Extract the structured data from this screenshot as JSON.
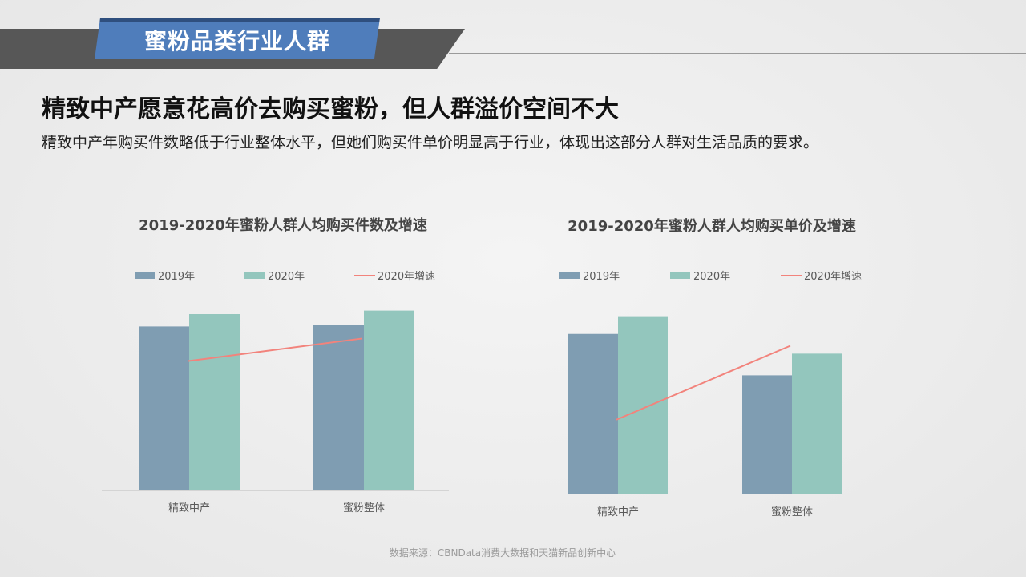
{
  "header": {
    "section_title": "蜜粉品类行业人群"
  },
  "headline": "精致中产愿意花高价去购买蜜粉，但人群溢价空间不大",
  "subline": "精致中产年购买件数略低于行业整体水平，但她们购买件单价明显高于行业，体现出这部分人群对生活品质的要求。",
  "footer": {
    "source": "数据来源：CBNData消费大数据和天猫新品创新中心"
  },
  "colors": {
    "series2019": "#7f9db2",
    "series2020": "#93c6bd",
    "growth": "#f2837c",
    "axis": "#d4d4d4"
  },
  "chart_data": [
    {
      "type": "bar",
      "title": "2019-2020年蜜粉人群人均购买件数及增速",
      "categories": [
        "精致中产",
        "蜜粉整体"
      ],
      "series": [
        {
          "name": "2019年",
          "values": [
            0.93,
            0.94
          ]
        },
        {
          "name": "2020年",
          "values": [
            1.0,
            1.02
          ]
        }
      ],
      "line_series": {
        "name": "2020年增速",
        "values": [
          0.8,
          0.94
        ]
      },
      "legend": [
        "2019年",
        "2020年",
        "2020年增速"
      ],
      "legend_position": "top",
      "ylim": [
        0,
        1.1
      ],
      "line_ylim": [
        0,
        1.2
      ],
      "grid": false
    },
    {
      "type": "bar",
      "title": "2019-2020年蜜粉人群人均购买单价及增速",
      "categories": [
        "精致中产",
        "蜜粉整体"
      ],
      "series": [
        {
          "name": "2019年",
          "values": [
            0.81,
            0.6
          ]
        },
        {
          "name": "2020年",
          "values": [
            0.9,
            0.71
          ]
        }
      ],
      "line_series": {
        "name": "2020年增速",
        "values": [
          0.45,
          0.9
        ]
      },
      "legend": [
        "2019年",
        "2020年",
        "2020年增速"
      ],
      "legend_position": "top",
      "ylim": [
        0,
        1.0
      ],
      "line_ylim": [
        0,
        1.2
      ],
      "grid": false
    }
  ]
}
